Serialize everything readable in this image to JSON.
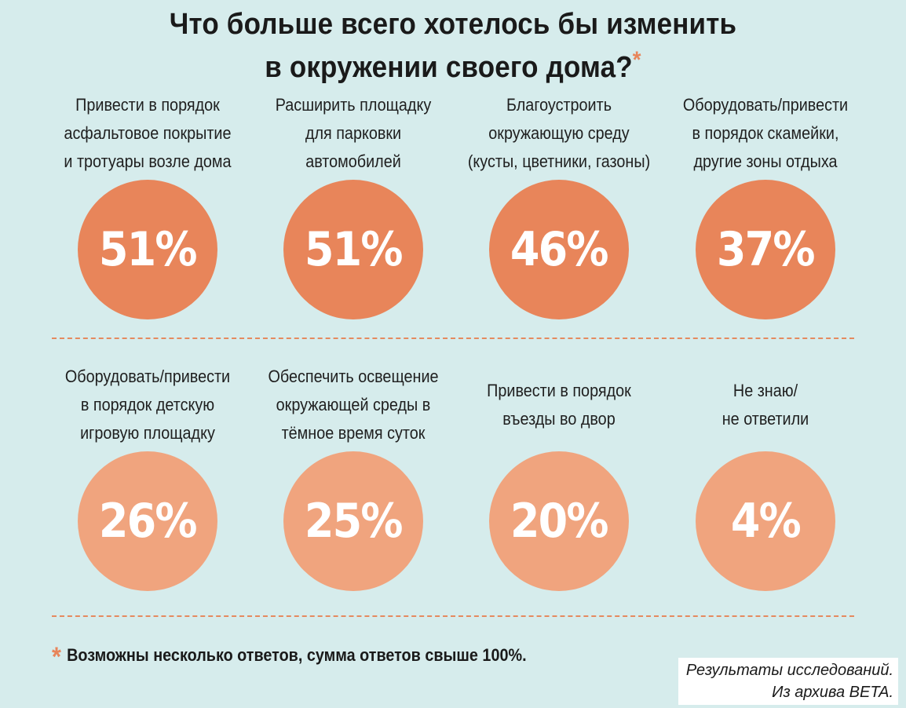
{
  "title": {
    "line1": "Что больше всего хотелось бы изменить",
    "line2": "в окружении своего дома?",
    "star": "*"
  },
  "chart_data": {
    "type": "bubble-infographic",
    "title": "Что больше всего хотелось бы изменить в окружении своего дома?",
    "unit": "%",
    "items": [
      {
        "label": [
          "Привести в порядок",
          "асфальтовое покрытие",
          "и тротуары возле дома"
        ],
        "value": 51,
        "display": "51%",
        "color": "#e8855a"
      },
      {
        "label": [
          "Расширить площадку",
          "для парковки",
          "автомобилей"
        ],
        "value": 51,
        "display": "51%",
        "color": "#e8855a"
      },
      {
        "label": [
          "Благоустроить",
          "окружающую среду",
          "(кусты, цветники, газоны)"
        ],
        "value": 46,
        "display": "46%",
        "color": "#e8855a"
      },
      {
        "label": [
          "Оборудовать/привести",
          "в порядок скамейки,",
          "другие зоны отдыха"
        ],
        "value": 37,
        "display": "37%",
        "color": "#e8855a"
      },
      {
        "label": [
          "Оборудовать/привести",
          "в порядок детскую",
          "игровую площадку"
        ],
        "value": 26,
        "display": "26%",
        "color": "#f0a47e"
      },
      {
        "label": [
          "Обеспечить освещение",
          "окружающей среды в",
          "тёмное время суток"
        ],
        "value": 25,
        "display": "25%",
        "color": "#f0a47e"
      },
      {
        "label": [
          "Привести в порядок",
          "въезды во двор"
        ],
        "value": 20,
        "display": "20%",
        "color": "#f0a47e"
      },
      {
        "label": [
          "Не знаю/",
          "не ответили"
        ],
        "value": 4,
        "display": "4%",
        "color": "#f0a47e"
      }
    ]
  },
  "footnote": {
    "star": "*",
    "text": "Возможны несколько ответов, сумма ответов свыше 100%."
  },
  "source": {
    "line1": "Результаты исследований.",
    "line2": "Из архива BETA."
  }
}
